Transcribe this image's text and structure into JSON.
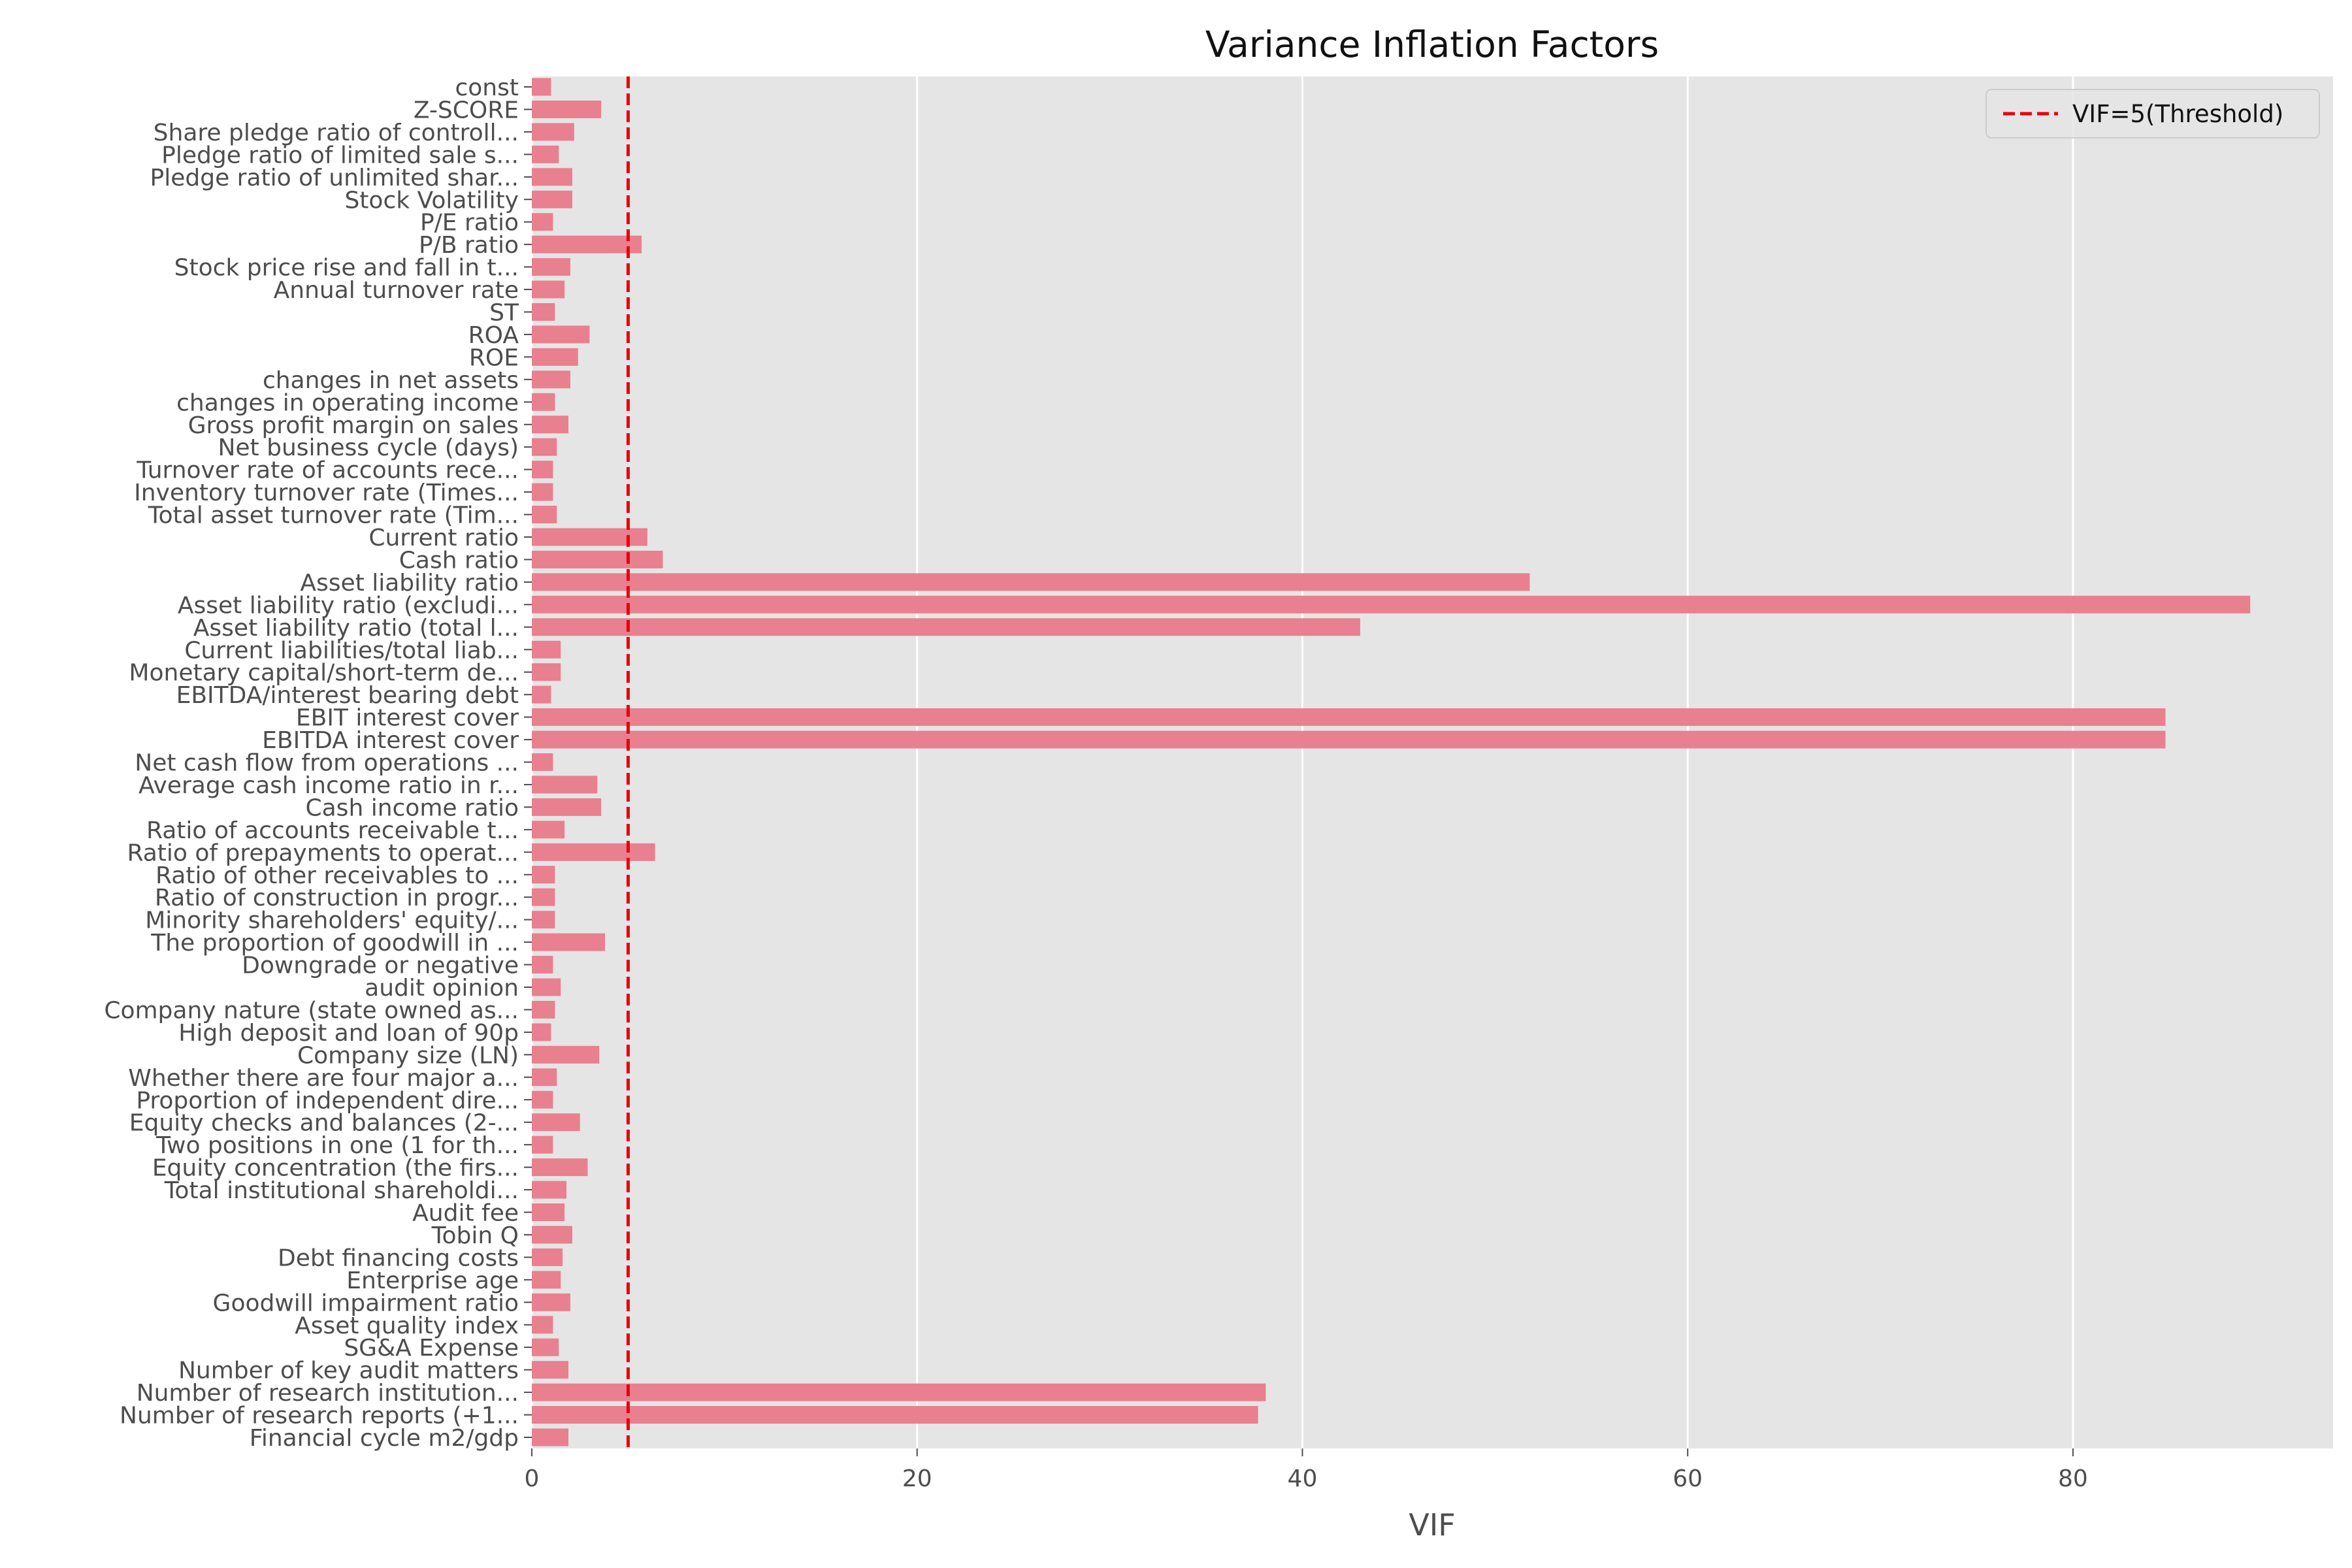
{
  "chart_data": {
    "type": "bar",
    "orientation": "horizontal",
    "title": "Variance Inflation Factors",
    "xlabel": "VIF",
    "ylabel": "",
    "xlim": [
      0,
      93.5
    ],
    "xticks": [
      0,
      20,
      40,
      60,
      80
    ],
    "grid": true,
    "legend_position": "top-right",
    "colors": {
      "bar": "#e8808f",
      "threshold": "#e8000b",
      "axes_bg": "#e5e5e5",
      "grid": "#ffffff"
    },
    "threshold": {
      "value": 5,
      "label": "VIF=5(Threshold)"
    },
    "categories": [
      "const",
      "Z-SCORE",
      "Share pledge ratio of controll...",
      "Pledge ratio of limited sale s...",
      "Pledge ratio of unlimited shar...",
      "Stock Volatility",
      "P/E ratio",
      "P/B ratio",
      "Stock price rise and fall in t...",
      "Annual turnover rate",
      "ST",
      "ROA",
      "ROE",
      "changes in net assets",
      "changes in operating income",
      "Gross profit margin on sales",
      "Net business cycle (days)",
      "Turnover rate of accounts rece...",
      "Inventory turnover rate (Times...",
      "Total asset turnover rate (Tim...",
      "Current ratio",
      "Cash ratio",
      "Asset liability ratio",
      "Asset liability ratio (excludi...",
      "Asset liability ratio (total l...",
      "Current liabilities/total liab...",
      "Monetary capital/short-term de...",
      "EBITDA/interest bearing debt",
      "EBIT interest cover",
      "EBITDA interest cover",
      "Net cash flow from operations ...",
      "Average cash income ratio in r...",
      "Cash income ratio",
      "Ratio of accounts receivable t...",
      "Ratio of prepayments to operat...",
      "Ratio of other receivables to ...",
      "Ratio of construction in progr...",
      "Minority shareholders' equity/...",
      "The proportion of goodwill in ...",
      "Downgrade or negative",
      "audit opinion ",
      "Company nature (state owned as...",
      "High deposit and loan of 90p",
      "Company size (LN)",
      "Whether there are four major a...",
      "Proportion of independent dire...",
      "Equity checks and balances (2-...",
      "Two positions in one (1 for th...",
      "Equity concentration (the firs...",
      "Total institutional shareholdi...",
      "Audit fee",
      "Tobin Q",
      "Debt financing costs",
      "Enterprise age",
      "Goodwill impairment ratio",
      "Asset quality index",
      "SG&A Expense",
      "Number of key audit matters",
      "Number of research institution...",
      "Number of research reports (+1...",
      "Financial cycle m2/gdp"
    ],
    "values": [
      1.0,
      3.6,
      2.2,
      1.4,
      2.1,
      2.1,
      1.1,
      5.7,
      2.0,
      1.7,
      1.2,
      3.0,
      2.4,
      2.0,
      1.2,
      1.9,
      1.3,
      1.1,
      1.1,
      1.3,
      6.0,
      6.8,
      51.8,
      89.2,
      43.0,
      1.5,
      1.5,
      1.0,
      84.8,
      84.8,
      1.1,
      3.4,
      3.6,
      1.7,
      6.4,
      1.2,
      1.2,
      1.2,
      3.8,
      1.1,
      1.5,
      1.2,
      1.0,
      3.5,
      1.3,
      1.1,
      2.5,
      1.1,
      2.9,
      1.8,
      1.7,
      2.1,
      1.6,
      1.5,
      2.0,
      1.1,
      1.4,
      1.9,
      38.1,
      37.7,
      1.9
    ]
  }
}
